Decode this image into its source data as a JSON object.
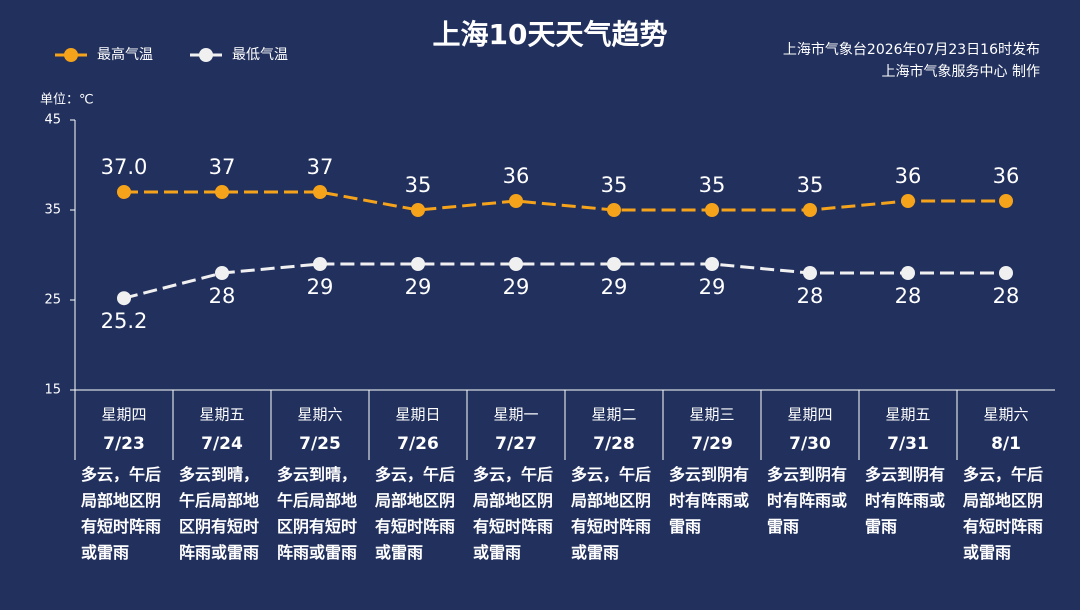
{
  "chart_data": {
    "type": "line",
    "title": "上海10天天气趋势",
    "source_lines": [
      "上海市气象台2026年07月23日16时发布",
      "上海市气象服务中心 制作"
    ],
    "unit_label": "单位：℃",
    "categories": [
      "7/23",
      "7/24",
      "7/25",
      "7/26",
      "7/27",
      "7/28",
      "7/29",
      "7/30",
      "7/31",
      "8/1"
    ],
    "weekdays": [
      "星期四",
      "星期五",
      "星期六",
      "星期日",
      "星期一",
      "星期二",
      "星期三",
      "星期四",
      "星期五",
      "星期六"
    ],
    "weekday_colors": [
      "#ffffff",
      "#ffffff",
      "#f5a623",
      "#f5a623",
      "#ffffff",
      "#ffffff",
      "#ffffff",
      "#ffffff",
      "#ffffff",
      "#f5a623"
    ],
    "descriptions": [
      "多云，午后局部地区阴有短时阵雨或雷雨",
      "多云到晴，午后局部地区阴有短时阵雨或雷雨",
      "多云到晴，午后局部地区阴有短时阵雨或雷雨",
      "多云，午后局部地区阴有短时阵雨或雷雨",
      "多云，午后局部地区阴有短时阵雨或雷雨",
      "多云，午后局部地区阴有短时阵雨或雷雨",
      "多云到阴有时有阵雨或雷雨",
      "多云到阴有时有阵雨或雷雨",
      "多云到阴有时有阵雨或雷雨",
      "多云，午后局部地区阴有短时阵雨或雷雨"
    ],
    "series": [
      {
        "name": "最高气温",
        "color": "#f5a31a",
        "values": [
          37,
          37,
          37,
          35,
          36,
          35,
          35,
          35,
          36,
          36
        ],
        "value_labels": [
          "37.0",
          "37",
          "37",
          "35",
          "36",
          "35",
          "35",
          "35",
          "36",
          "36"
        ]
      },
      {
        "name": "最低气温",
        "color": "#f0f0f0",
        "values": [
          25.2,
          28,
          29,
          29,
          29,
          29,
          29,
          28,
          28,
          28
        ]
      }
    ],
    "ylim": [
      15,
      45
    ],
    "yticks": [
      15,
      25,
      35,
      45
    ]
  }
}
